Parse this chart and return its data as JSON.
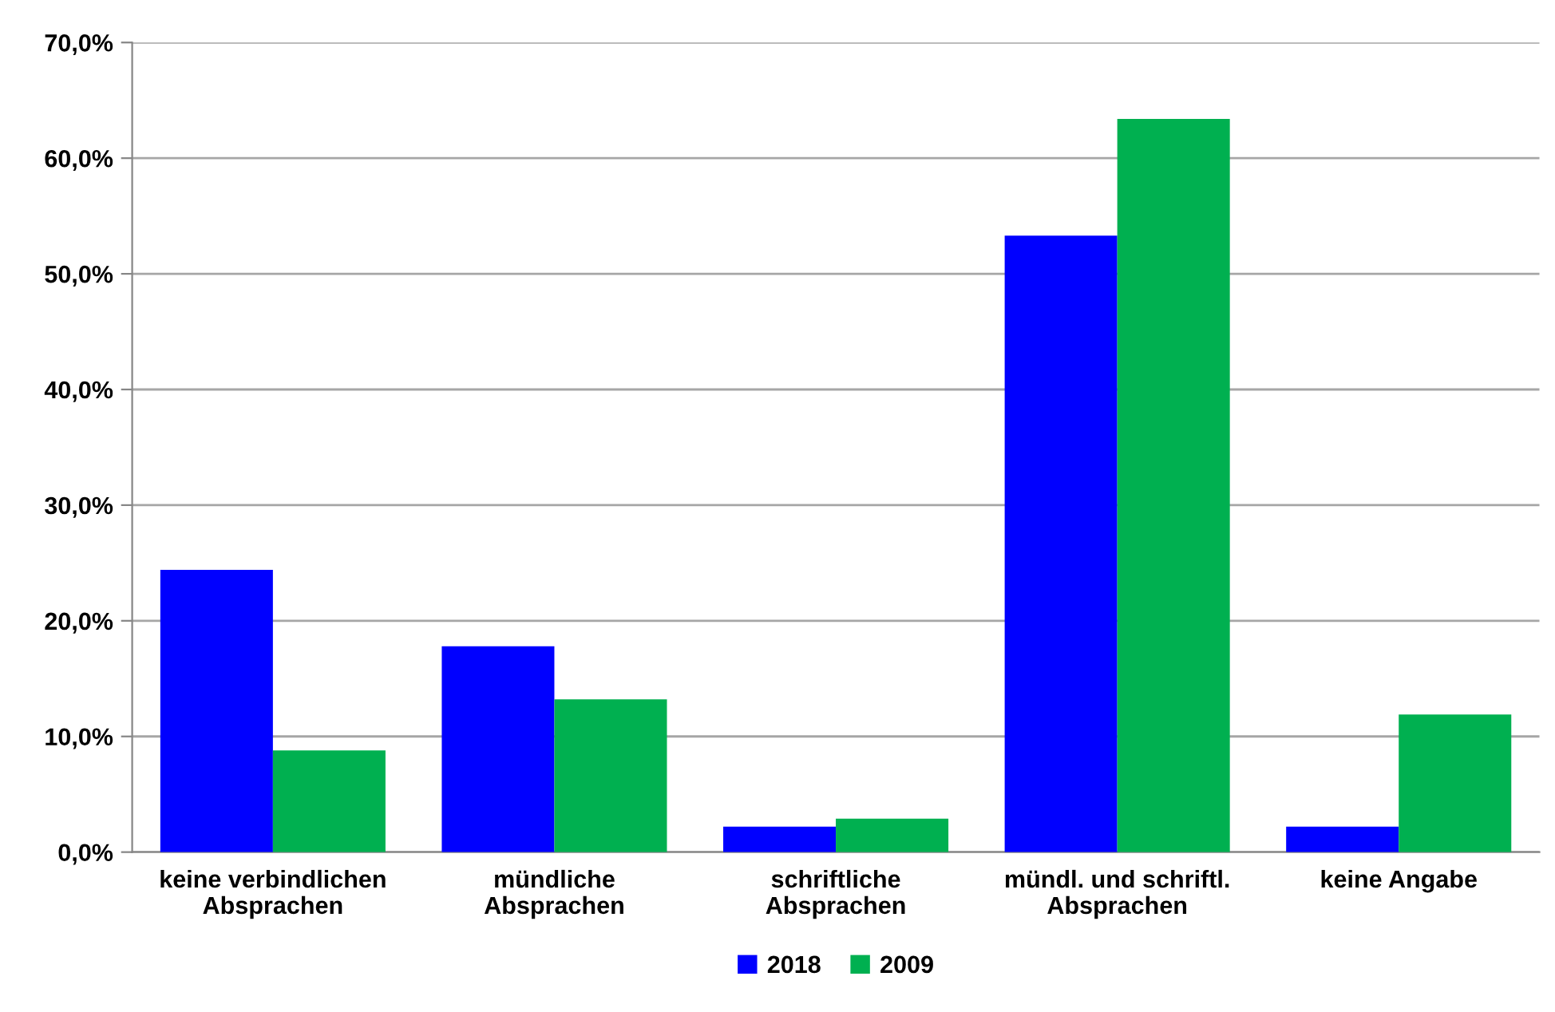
{
  "chart_data": {
    "type": "bar",
    "categories": [
      "keine verbindlichen\nAbsprachen",
      "mündliche\nAbsprachen",
      "schriftliche\nAbsprachen",
      "mündl. und schriftl.\nAbsprachen",
      "keine Angabe"
    ],
    "series": [
      {
        "name": "2018",
        "color": "#0000ff",
        "values": [
          24.4,
          17.8,
          2.2,
          53.3,
          2.2
        ]
      },
      {
        "name": "2009",
        "color": "#00b050",
        "values": [
          8.8,
          13.2,
          2.9,
          63.4,
          11.9
        ]
      }
    ],
    "ylim": [
      0,
      70
    ],
    "yticks": [
      {
        "value": 0,
        "label": "0,0%"
      },
      {
        "value": 10,
        "label": "10,0%"
      },
      {
        "value": 20,
        "label": "20,0%"
      },
      {
        "value": 30,
        "label": "30,0%"
      },
      {
        "value": 40,
        "label": "40,0%"
      },
      {
        "value": 50,
        "label": "50,0%"
      },
      {
        "value": 60,
        "label": "60,0%"
      },
      {
        "value": 70,
        "label": "70,0%"
      }
    ],
    "grid": "y",
    "legend": "bottom"
  }
}
